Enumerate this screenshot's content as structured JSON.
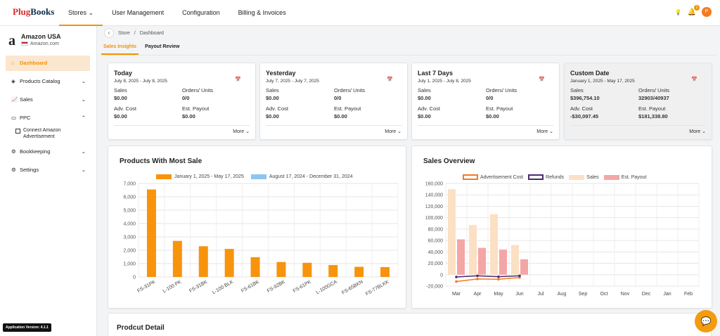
{
  "logo": {
    "part1": "Plug",
    "part2": "Books"
  },
  "nav": [
    {
      "label": "Stores ⌄",
      "active": true
    },
    {
      "label": "User Management"
    },
    {
      "label": "Configuration"
    },
    {
      "label": "Billing & Invoices"
    }
  ],
  "header": {
    "notif_count": "1",
    "avatar_initial": "P"
  },
  "store": {
    "name": "Amazon USA",
    "url": "Amazon.com",
    "logo_letter": "a"
  },
  "sidebar": {
    "items": [
      {
        "label": "Dashboard",
        "icon": "home-icon"
      },
      {
        "label": "Products Catalog",
        "icon": "tag-icon",
        "chevron": "⌄"
      },
      {
        "label": "Sales",
        "icon": "chart-icon",
        "chevron": "⌄"
      },
      {
        "label": "PPC",
        "icon": "ppc-icon",
        "chevron": "⌃"
      },
      {
        "label": "Bookkeeping",
        "icon": "book-icon",
        "chevron": "⌄"
      },
      {
        "label": "Settings",
        "icon": "gear-icon",
        "chevron": "⌄"
      }
    ],
    "sub_item": "Connect Amazon Advertisement",
    "version": "Application Version: 4.1.1"
  },
  "breadcrumb": {
    "store": "Store",
    "sep": "/",
    "page": "Dashboard"
  },
  "tabs": [
    {
      "label": "Sales Insights"
    },
    {
      "label": "Payout Review"
    }
  ],
  "kpi_cards": [
    {
      "title": "Today",
      "range": "July 8, 2025 - July 8, 2025",
      "sales_label": "Sales",
      "sales": "$0.00",
      "orders_label": "Orders/ Units",
      "orders": "0/0",
      "adv_label": "Adv. Cost",
      "adv": "$0.00",
      "payout_label": "Est. Payout",
      "payout": "$0.00",
      "more": "More ⌄"
    },
    {
      "title": "Yesterday",
      "range": "July 7, 2025 - July 7, 2025",
      "sales_label": "Sales",
      "sales": "$0.00",
      "orders_label": "Orders/ Units",
      "orders": "0/0",
      "adv_label": "Adv. Cost",
      "adv": "$0.00",
      "payout_label": "Est. Payout",
      "payout": "$0.00",
      "more": "More ⌄"
    },
    {
      "title": "Last 7 Days",
      "range": "July 1, 2025 - July 8, 2025",
      "sales_label": "Sales",
      "sales": "$0.00",
      "orders_label": "Orders/ Units",
      "orders": "0/0",
      "adv_label": "Adv. Cost",
      "adv": "$0.00",
      "payout_label": "Est. Payout",
      "payout": "$0.00",
      "more": "More ⌄"
    },
    {
      "title": "Custom Date",
      "range": "January 1, 2025 - May 17, 2025",
      "sales_label": "Sales",
      "sales": "$396,754.10",
      "orders_label": "Orders/ Units",
      "orders": "32903/40937",
      "adv_label": "Adv. Cost",
      "adv": "-$30,097.45",
      "payout_label": "Est. Payout",
      "payout": "$181,338.80",
      "more": "More ⌄"
    }
  ],
  "products_chart": {
    "title": "Products With Most Sale"
  },
  "sales_chart": {
    "title": "Sales Overview"
  },
  "detail": {
    "title": "Prodcut Detail"
  },
  "colors": {
    "accent": "#f39200",
    "bar1": "#f7940c",
    "bar2": "#8ec5f0",
    "adv": "#f47b20",
    "refunds": "#4a2a6e",
    "sales": "#fbe0c4",
    "payout": "#f4a6a6"
  },
  "chart_data": [
    {
      "type": "bar",
      "title": "Products With Most Sale",
      "categories": [
        "FS-31PK",
        "L-100 PK",
        "FS-31BK",
        "L-100 BLK",
        "FS-61BK",
        "FS-92BK",
        "FS-61PK",
        "L-100GCA",
        "FS-65BKN",
        "FS-77BLKK"
      ],
      "series": [
        {
          "name": "January 1, 2025 - May 17, 2025",
          "values": [
            6550,
            2700,
            2300,
            2100,
            1480,
            1120,
            1060,
            890,
            760,
            740
          ]
        },
        {
          "name": "August 17, 2024 - December 31, 2024",
          "values": [
            0,
            0,
            0,
            0,
            0,
            0,
            0,
            0,
            0,
            0
          ]
        }
      ],
      "yticks": [
        "0",
        "1,000",
        "2,000",
        "3,000",
        "4,000",
        "5,000",
        "6,000",
        "7,000"
      ],
      "ylim": [
        0,
        7000
      ],
      "grid": true,
      "legend": "top"
    },
    {
      "type": "bar",
      "title": "Sales Overview",
      "categories": [
        "Mar",
        "Apr",
        "May",
        "Jun",
        "Jul",
        "Aug",
        "Sep",
        "Oct",
        "Nov",
        "Dec",
        "Jan",
        "Feb"
      ],
      "series": [
        {
          "name": "Advertisement Cost",
          "kind": "line",
          "values": [
            -12000,
            -7500,
            -8000,
            -5000,
            null,
            null,
            null,
            null,
            null,
            null,
            null,
            null
          ]
        },
        {
          "name": "Refunds",
          "kind": "line",
          "values": [
            -4000,
            -2000,
            -3500,
            -2000,
            null,
            null,
            null,
            null,
            null,
            null,
            null,
            null
          ]
        },
        {
          "name": "Sales",
          "kind": "bar",
          "values": [
            150000,
            87000,
            106000,
            52000,
            null,
            null,
            null,
            null,
            null,
            null,
            null,
            null
          ]
        },
        {
          "name": "Est. Payout",
          "kind": "bar",
          "values": [
            62000,
            47000,
            44000,
            27000,
            null,
            null,
            null,
            null,
            null,
            null,
            null,
            null
          ]
        }
      ],
      "yticks": [
        "-20,000",
        "0",
        "20,000",
        "40,000",
        "60,000",
        "80,000",
        "100,000",
        "120,000",
        "140,000",
        "160,000"
      ],
      "ylim": [
        -20000,
        160000
      ],
      "grid": true,
      "legend": "top"
    }
  ]
}
